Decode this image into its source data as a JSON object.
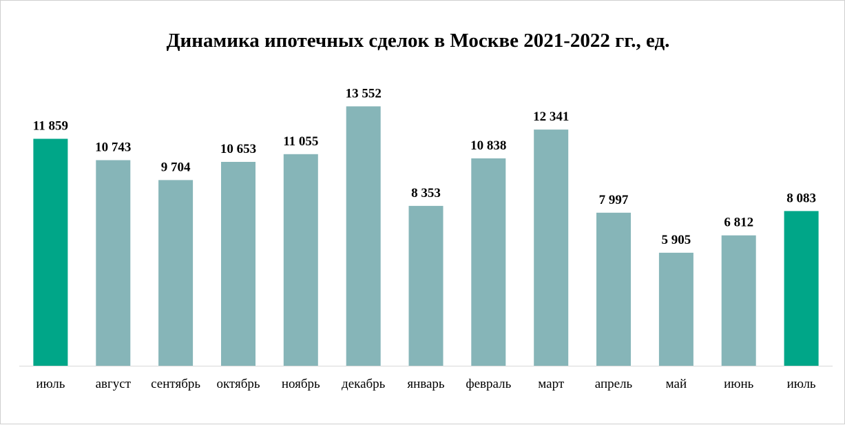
{
  "chart_data": {
    "type": "bar",
    "title": "Динамика ипотечных сделок в Москве 2021-2022 гг., ед.",
    "xlabel": "",
    "ylabel": "",
    "ylim": [
      0,
      14000
    ],
    "grid": false,
    "legend": "none",
    "categories": [
      "июль",
      "август",
      "сентябрь",
      "октябрь",
      "ноябрь",
      "декабрь",
      "январь",
      "февраль",
      "март",
      "апрель",
      "май",
      "июнь",
      "июль"
    ],
    "values": [
      11859,
      10743,
      9704,
      10653,
      11055,
      13552,
      8353,
      10838,
      12341,
      7997,
      5905,
      6812,
      8083
    ],
    "value_labels": [
      "11 859",
      "10 743",
      "9 704",
      "10 653",
      "11 055",
      "13 552",
      "8 353",
      "10 838",
      "12 341",
      "7 997",
      "5 905",
      "6 812",
      "8 083"
    ],
    "highlighted_indices": [
      0,
      12
    ],
    "colors": {
      "bar": "#86b5b8",
      "highlight": "#00a688",
      "axis": "#d9d9d9"
    }
  }
}
